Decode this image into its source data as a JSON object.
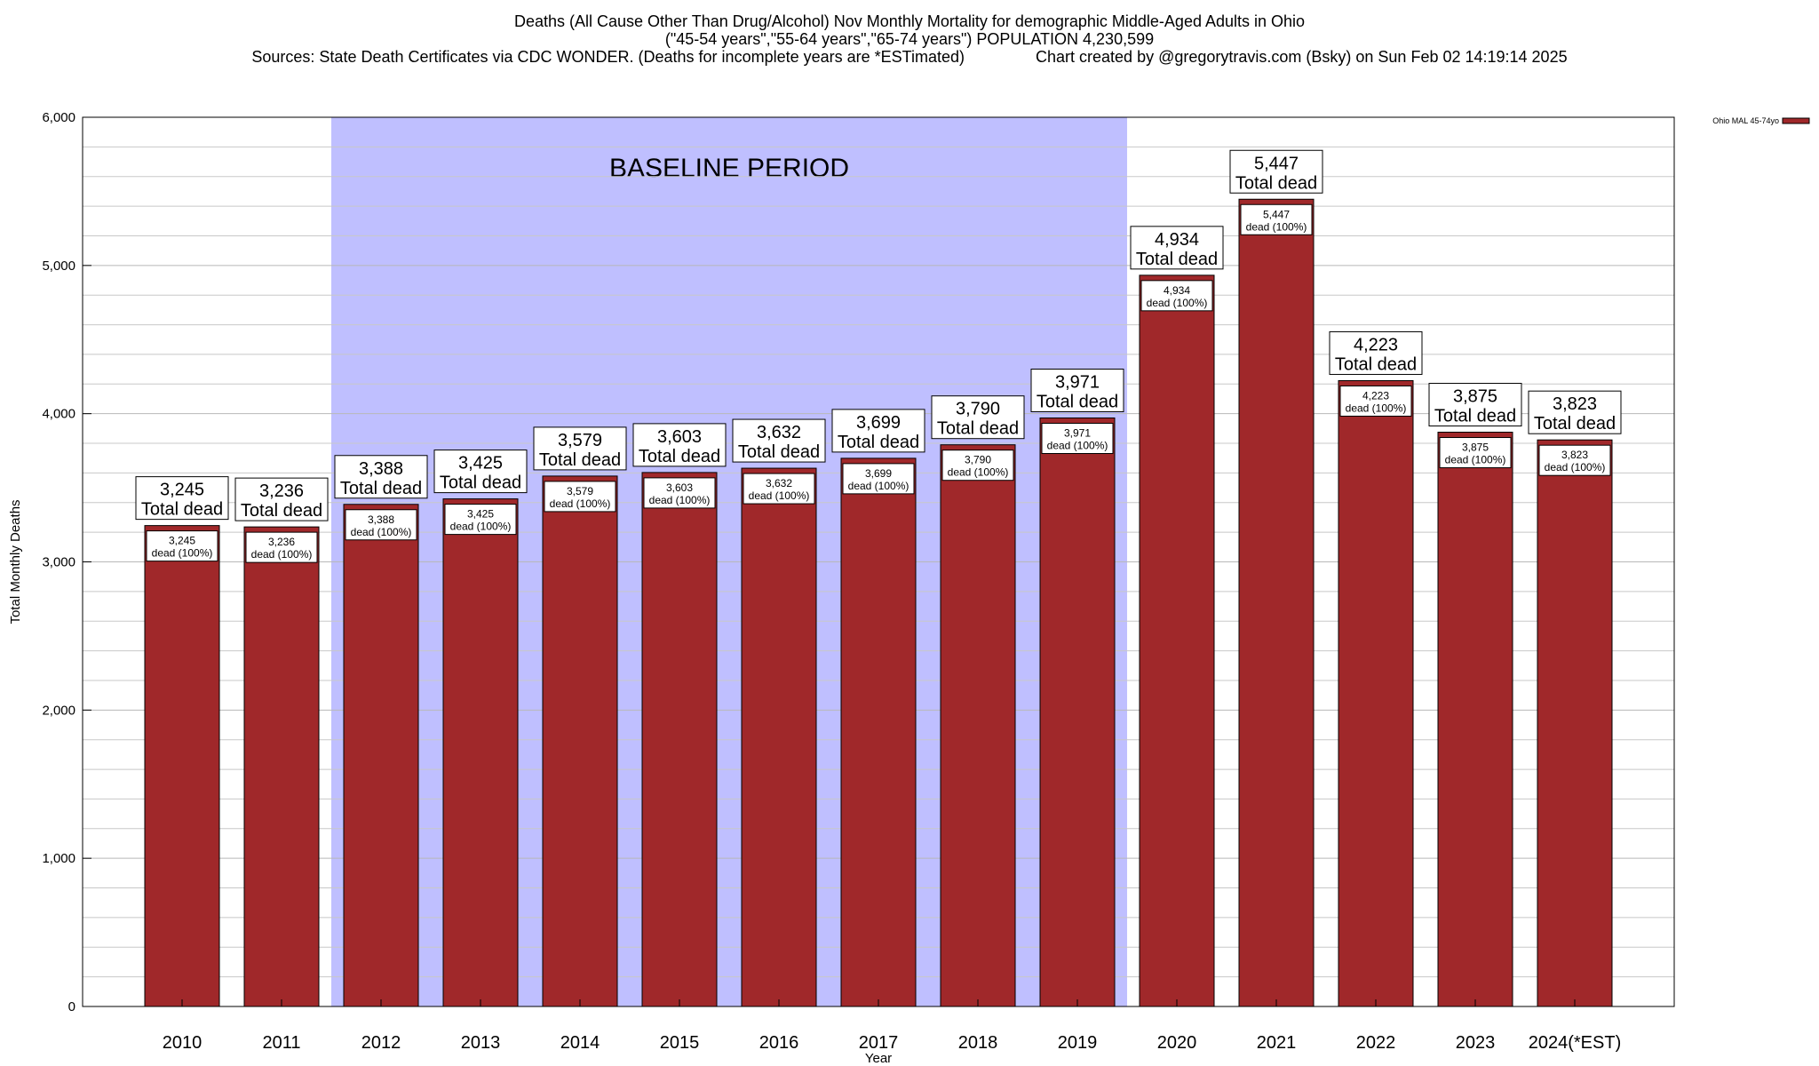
{
  "header": {
    "line1": "Deaths (All Cause Other Than Drug/Alcohol) Nov Monthly Mortality for demographic Middle-Aged Adults in Ohio",
    "line2": "(\"45-54 years\",\"55-64 years\",\"65-74 years\") POPULATION 4,230,599",
    "line3": "Sources: State Death Certificates via CDC WONDER. (Deaths for incomplete years are *ESTimated)                Chart created by @gregorytravis.com (Bsky) on Sun Feb 02 14:19:14 2025"
  },
  "chart_data": {
    "type": "bar",
    "title": "Deaths (All Cause Other Than Drug/Alcohol) Nov Monthly Mortality for demographic Middle-Aged Adults in Ohio",
    "xlabel": "Year",
    "ylabel": "Total Monthly Deaths",
    "ylim": [
      0,
      6000
    ],
    "yticks": [
      0,
      1000,
      2000,
      3000,
      4000,
      5000,
      6000
    ],
    "ytick_labels": [
      "0",
      "1,000",
      "2,000",
      "3,000",
      "4,000",
      "5,000",
      "6,000"
    ],
    "grid": true,
    "legend_position": "top-right",
    "categories": [
      "2010",
      "2011",
      "2012",
      "2013",
      "2014",
      "2015",
      "2016",
      "2017",
      "2018",
      "2019",
      "2020",
      "2021",
      "2022",
      "2023",
      "2024(*EST)"
    ],
    "series": [
      {
        "name": "Ohio MAL 45-74yo",
        "color": "#a0282a",
        "values": [
          3245,
          3236,
          3388,
          3425,
          3579,
          3603,
          3632,
          3699,
          3790,
          3971,
          4934,
          5447,
          4223,
          3875,
          3823
        ]
      }
    ],
    "value_labels": [
      "3,245",
      "3,236",
      "3,388",
      "3,425",
      "3,579",
      "3,603",
      "3,632",
      "3,699",
      "3,790",
      "3,971",
      "4,934",
      "5,447",
      "4,223",
      "3,875",
      "3,823"
    ],
    "total_label_suffix": "Total dead",
    "inner_label_suffix": "dead (100%)",
    "baseline": {
      "label": "BASELINE PERIOD",
      "from": "2012",
      "to": "2019",
      "color": "#bfbfff"
    }
  }
}
